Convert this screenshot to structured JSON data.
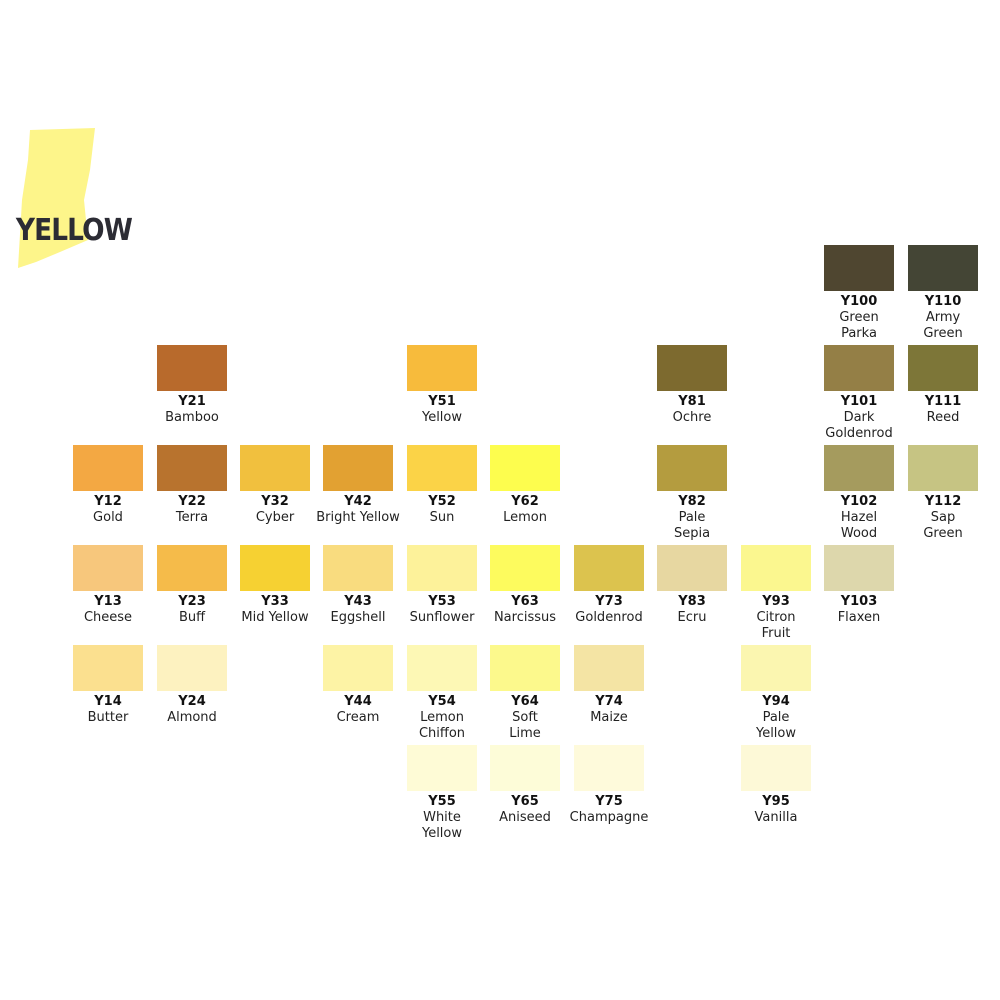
{
  "header": {
    "title": "YELLOW"
  },
  "columns": [
    [
      {
        "code": "Y12",
        "name": [
          "Gold"
        ],
        "color": "#f3a843"
      },
      {
        "code": "Y13",
        "name": [
          "Cheese"
        ],
        "color": "#f7c77c"
      },
      {
        "code": "Y14",
        "name": [
          "Butter"
        ],
        "color": "#fbe08f"
      }
    ],
    [
      {
        "code": "Y21",
        "name": [
          "Bamboo"
        ],
        "color": "#b86a2c"
      },
      {
        "code": "Y22",
        "name": [
          "Terra"
        ],
        "color": "#b8732e"
      },
      {
        "code": "Y23",
        "name": [
          "Buff"
        ],
        "color": "#f5bb4a"
      },
      {
        "code": "Y24",
        "name": [
          "Almond"
        ],
        "color": "#fdf2c0"
      }
    ],
    [
      {
        "code": "Y32",
        "name": [
          "Cyber"
        ],
        "color": "#f1c03e"
      },
      {
        "code": "Y33",
        "name": [
          "Mid Yellow"
        ],
        "color": "#f6d132"
      }
    ],
    [
      {
        "code": "Y42",
        "name": [
          "Bright Yellow"
        ],
        "color": "#e2a132"
      },
      {
        "code": "Y43",
        "name": [
          "Eggshell"
        ],
        "color": "#f9dc7f"
      },
      {
        "code": "Y44",
        "name": [
          "Cream"
        ],
        "color": "#fdf3a5"
      }
    ],
    [
      {
        "code": "Y51",
        "name": [
          "Yellow"
        ],
        "color": "#f7bb3c"
      },
      {
        "code": "Y52",
        "name": [
          "Sun"
        ],
        "color": "#fbd347"
      },
      {
        "code": "Y53",
        "name": [
          "Sunflower"
        ],
        "color": "#fdf29a"
      },
      {
        "code": "Y54",
        "name": [
          "Lemon",
          "Chiffon"
        ],
        "color": "#fdf8b5"
      },
      {
        "code": "Y55",
        "name": [
          "White",
          "Yellow"
        ],
        "color": "#fefbd6"
      }
    ],
    [
      {
        "code": "Y62",
        "name": [
          "Lemon"
        ],
        "color": "#fdfd4e"
      },
      {
        "code": "Y63",
        "name": [
          "Narcissus"
        ],
        "color": "#fdfb5e"
      },
      {
        "code": "Y64",
        "name": [
          "Soft",
          "Lime"
        ],
        "color": "#fcf98c"
      },
      {
        "code": "Y65",
        "name": [
          "Aniseed"
        ],
        "color": "#fdfcd8"
      }
    ],
    [
      {
        "code": "Y73",
        "name": [
          "Goldenrod"
        ],
        "color": "#dcc34e"
      },
      {
        "code": "Y74",
        "name": [
          "Maize"
        ],
        "color": "#f4e4a4"
      },
      {
        "code": "Y75",
        "name": [
          "Champagne"
        ],
        "color": "#fefadb"
      }
    ],
    [
      {
        "code": "Y81",
        "name": [
          "Ochre"
        ],
        "color": "#7d6a2f"
      },
      {
        "code": "Y82",
        "name": [
          "Pale",
          "Sepia"
        ],
        "color": "#b49c3f"
      },
      {
        "code": "Y83",
        "name": [
          "Ecru"
        ],
        "color": "#e7d7a1"
      }
    ],
    [
      {
        "code": "Y93",
        "name": [
          "Citron",
          "Fruit"
        ],
        "color": "#fbf78f"
      },
      {
        "code": "Y94",
        "name": [
          "Pale",
          "Yellow"
        ],
        "color": "#fbf6b0"
      },
      {
        "code": "Y95",
        "name": [
          "Vanilla"
        ],
        "color": "#fdf9d7"
      }
    ],
    [
      {
        "code": "Y100",
        "name": [
          "Green",
          "Parka"
        ],
        "color": "#4f4630"
      },
      {
        "code": "Y101",
        "name": [
          "Dark",
          "Goldenrod"
        ],
        "color": "#947f46"
      },
      {
        "code": "Y102",
        "name": [
          "Hazel",
          "Wood"
        ],
        "color": "#a59b5e"
      },
      {
        "code": "Y103",
        "name": [
          "Flaxen"
        ],
        "color": "#ddd7ac"
      }
    ],
    [
      {
        "code": "Y110",
        "name": [
          "Army",
          "Green"
        ],
        "color": "#444535"
      },
      {
        "code": "Y111",
        "name": [
          "Reed"
        ],
        "color": "#7d7638"
      },
      {
        "code": "Y112",
        "name": [
          "Sap",
          "Green"
        ],
        "color": "#c6c483"
      }
    ]
  ]
}
